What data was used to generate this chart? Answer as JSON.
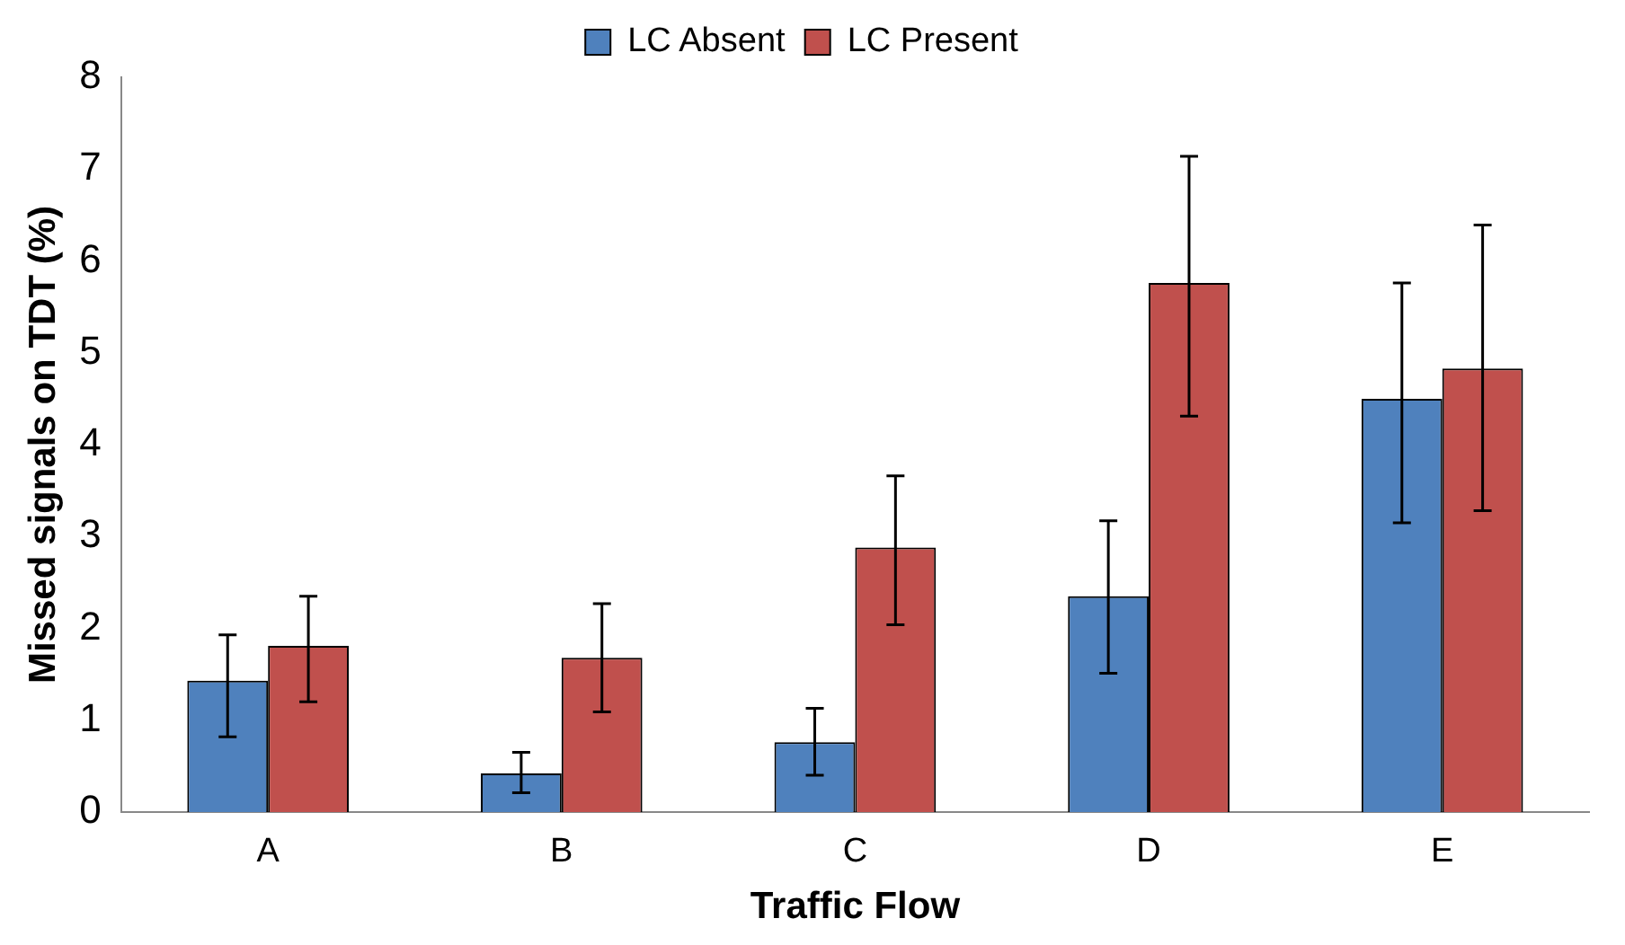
{
  "chart_data": {
    "type": "bar",
    "xlabel": "Traffic Flow",
    "ylabel": "Missed signals on TDT (%)",
    "categories": [
      "A",
      "B",
      "C",
      "D",
      "E"
    ],
    "series": [
      {
        "name": "LC Absent",
        "color": "#4f81bd",
        "values": [
          1.43,
          0.42,
          0.76,
          2.35,
          4.5
        ],
        "errors": [
          [
            0.82,
            1.93
          ],
          [
            0.21,
            0.65
          ],
          [
            0.4,
            1.13
          ],
          [
            1.51,
            3.17
          ],
          [
            3.15,
            5.76
          ]
        ]
      },
      {
        "name": "LC Present",
        "color": "#c0504d",
        "values": [
          1.81,
          1.68,
          2.88,
          5.76,
          4.83
        ],
        "errors": [
          [
            1.2,
            2.35
          ],
          [
            1.09,
            2.27
          ],
          [
            2.04,
            3.66
          ],
          [
            4.31,
            7.14
          ],
          [
            3.28,
            6.39
          ]
        ]
      }
    ],
    "ylim": [
      0,
      8
    ],
    "yticks": [
      0,
      1,
      2,
      3,
      4,
      5,
      6,
      7,
      8
    ],
    "grid": false,
    "legend": "top"
  }
}
